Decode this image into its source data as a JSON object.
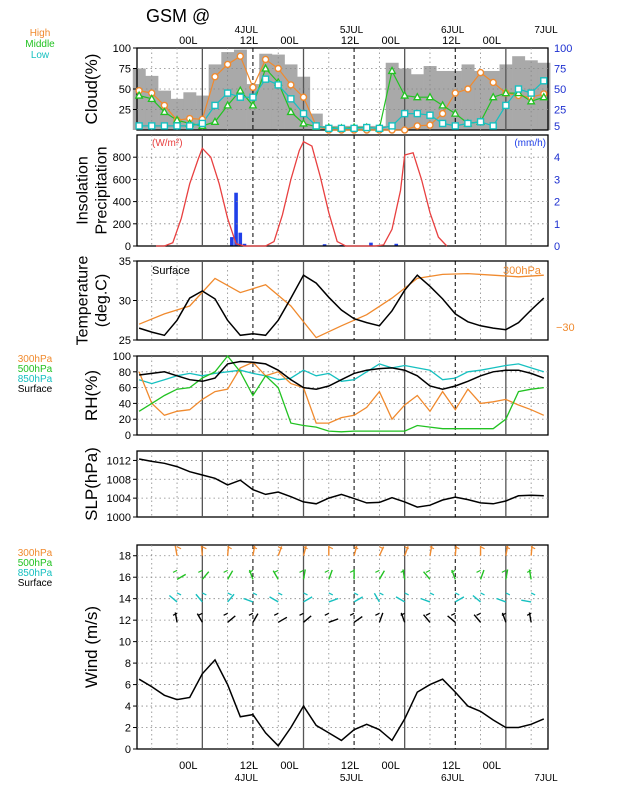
{
  "header": {
    "title": "GSM  @",
    "time_labels": [
      "00L",
      "12L",
      "00L",
      "12L",
      "00L",
      "12L",
      "00L"
    ],
    "date_labels": [
      "4JUL",
      "5JUL",
      "6JUL",
      "7JUL"
    ]
  },
  "chart_data": [
    {
      "id": "cloud",
      "type": "bar",
      "ylabel": "Cloud(%)",
      "ylim": [
        0,
        100
      ],
      "yticks": [
        25,
        50,
        75,
        100
      ],
      "right_ticks": [
        5,
        25,
        50,
        75,
        100
      ],
      "legend": [
        "High",
        "Middle",
        "Low"
      ],
      "x_hours": [
        -15,
        -12,
        -9,
        -6,
        -3,
        0,
        3,
        6,
        9,
        12,
        15,
        18,
        21,
        24,
        27,
        30,
        33,
        36,
        39,
        42,
        45,
        48,
        51,
        54,
        57,
        60,
        63,
        66,
        69,
        72,
        75,
        78,
        81
      ],
      "series": [
        {
          "name": "total",
          "values": [
            75,
            66,
            48,
            38,
            46,
            42,
            80,
            95,
            98,
            56,
            93,
            92,
            80,
            65,
            20,
            5,
            5,
            5,
            5,
            5,
            82,
            75,
            68,
            78,
            72,
            72,
            80,
            72,
            72,
            80,
            90,
            85,
            82
          ]
        },
        {
          "name": "High",
          "values": [
            48,
            45,
            30,
            12,
            14,
            13,
            65,
            80,
            90,
            52,
            86,
            75,
            55,
            40,
            5,
            0,
            0,
            0,
            0,
            0,
            0,
            0,
            5,
            6,
            20,
            45,
            50,
            70,
            58,
            45,
            42,
            40,
            44
          ]
        },
        {
          "name": "Middle",
          "values": [
            42,
            38,
            22,
            12,
            8,
            5,
            10,
            30,
            48,
            30,
            75,
            58,
            22,
            8,
            4,
            3,
            2,
            3,
            3,
            2,
            72,
            42,
            40,
            40,
            30,
            20,
            8,
            10,
            40,
            45,
            45,
            35,
            40
          ]
        },
        {
          "name": "Low",
          "values": [
            5,
            5,
            5,
            5,
            5,
            8,
            30,
            45,
            40,
            40,
            62,
            55,
            38,
            20,
            5,
            2,
            2,
            2,
            3,
            2,
            5,
            20,
            20,
            18,
            8,
            5,
            8,
            10,
            5,
            30,
            50,
            45,
            60
          ]
        }
      ]
    },
    {
      "id": "insolation",
      "type": "line",
      "ylabel": "Insolation Precipitation",
      "left_unit": "(W/m²)",
      "right_unit": "(mm/h)",
      "ylim": [
        0,
        1000
      ],
      "yticks": [
        0,
        200,
        400,
        600,
        800
      ],
      "right_ticks": [
        0,
        1,
        2,
        3,
        4
      ],
      "series": [
        {
          "name": "insolation",
          "x": [
            -11,
            -9,
            -7,
            -5,
            -3,
            -1,
            0,
            2,
            4,
            6,
            8,
            10,
            11,
            13,
            15,
            17,
            19,
            21,
            23,
            24,
            26,
            28,
            30,
            32,
            34,
            35,
            37,
            39,
            41,
            43,
            45,
            47,
            48,
            50,
            52,
            54,
            56,
            58
          ],
          "values": [
            0,
            0,
            30,
            250,
            560,
            780,
            880,
            800,
            560,
            250,
            20,
            0,
            0,
            0,
            0,
            40,
            280,
            600,
            860,
            940,
            900,
            620,
            300,
            40,
            0,
            0,
            0,
            0,
            0,
            10,
            150,
            500,
            820,
            840,
            600,
            300,
            80,
            0
          ]
        },
        {
          "name": "precipitation",
          "x": [
            7,
            8,
            9,
            10,
            29,
            33,
            40,
            42,
            46
          ],
          "values": [
            0.4,
            2.4,
            0.6,
            0.1,
            0.08,
            0.04,
            0.15,
            0.05,
            0.1
          ]
        }
      ]
    },
    {
      "id": "temperature",
      "type": "line",
      "ylabel": "Temperature (deg.C)",
      "annotation_left": "Surface",
      "annotation_right": "300hPa",
      "right_tick": "−30",
      "ylim": [
        25,
        35
      ],
      "yticks": [
        25,
        30,
        35
      ],
      "series": [
        {
          "name": "Surface",
          "x": [
            -15,
            -12,
            -9,
            -6,
            -3,
            0,
            3,
            6,
            9,
            12,
            15,
            18,
            21,
            24,
            27,
            30,
            33,
            36,
            39,
            42,
            45,
            48,
            51,
            54,
            57,
            60,
            63,
            66,
            69,
            72,
            75,
            78,
            81
          ],
          "values": [
            26.5,
            26,
            25.6,
            27.5,
            30.3,
            31.2,
            30.2,
            27.5,
            25.6,
            25.8,
            25.6,
            27.5,
            30.3,
            33.2,
            32.2,
            30.4,
            28.8,
            27.7,
            27.2,
            26.8,
            28.7,
            31.3,
            33.2,
            31.8,
            30.2,
            28.3,
            27.3,
            26.8,
            26.5,
            26.3,
            27.2,
            28.8,
            30.3
          ]
        },
        {
          "name": "300hPa",
          "x": [
            -15,
            -9,
            -3,
            3,
            9,
            15,
            21,
            27,
            33,
            39,
            45,
            51,
            57,
            63,
            69,
            75,
            81
          ],
          "values": [
            27,
            28.3,
            29.3,
            32.8,
            31,
            32,
            29.3,
            25.3,
            26.8,
            28.2,
            30.3,
            32.8,
            33.3,
            33.4,
            33.2,
            33,
            33.2
          ]
        }
      ]
    },
    {
      "id": "rh",
      "type": "line",
      "ylabel": "RH(%)",
      "legend": [
        "300hPa",
        "500hPa",
        "850hPa",
        "Surface"
      ],
      "ylim": [
        0,
        100
      ],
      "yticks": [
        0,
        20,
        40,
        60,
        80,
        100
      ],
      "series": [
        {
          "name": "300hPa",
          "x": [
            -15,
            -12,
            -9,
            -6,
            -3,
            0,
            3,
            6,
            9,
            12,
            15,
            18,
            21,
            24,
            27,
            30,
            33,
            36,
            39,
            42,
            45,
            48,
            51,
            54,
            57,
            60,
            63,
            66,
            69,
            72,
            75,
            78,
            81
          ],
          "values": [
            80,
            40,
            25,
            30,
            32,
            45,
            55,
            58,
            85,
            92,
            75,
            80,
            65,
            60,
            15,
            15,
            22,
            25,
            35,
            55,
            20,
            38,
            50,
            30,
            55,
            32,
            58,
            40,
            42,
            45,
            38,
            32,
            25
          ]
        },
        {
          "name": "500hPa",
          "x": [
            -15,
            -12,
            -9,
            -6,
            -3,
            0,
            3,
            6,
            9,
            12,
            15,
            18,
            21,
            24,
            27,
            30,
            33,
            36,
            39,
            42,
            45,
            48,
            51,
            54,
            57,
            60,
            63,
            66,
            69,
            72,
            75,
            78,
            81
          ],
          "values": [
            30,
            40,
            50,
            58,
            60,
            72,
            80,
            100,
            80,
            50,
            75,
            60,
            15,
            12,
            10,
            5,
            4,
            5,
            5,
            5,
            5,
            5,
            12,
            10,
            8,
            8,
            8,
            8,
            8,
            20,
            55,
            58,
            60
          ]
        },
        {
          "name": "850hPa",
          "x": [
            -15,
            -12,
            -9,
            -6,
            -3,
            0,
            3,
            6,
            9,
            12,
            15,
            18,
            21,
            24,
            27,
            30,
            33,
            36,
            39,
            42,
            45,
            48,
            51,
            54,
            57,
            60,
            63,
            66,
            69,
            72,
            75,
            78,
            81
          ],
          "values": [
            70,
            65,
            70,
            75,
            78,
            75,
            78,
            80,
            82,
            78,
            75,
            70,
            72,
            82,
            75,
            78,
            68,
            70,
            80,
            90,
            85,
            88,
            85,
            82,
            70,
            72,
            80,
            82,
            85,
            88,
            90,
            85,
            80
          ]
        },
        {
          "name": "Surface",
          "x": [
            -15,
            -12,
            -9,
            -6,
            -3,
            0,
            3,
            6,
            9,
            12,
            15,
            18,
            21,
            24,
            27,
            30,
            33,
            36,
            39,
            42,
            45,
            48,
            51,
            54,
            57,
            60,
            63,
            66,
            69,
            72,
            75,
            78,
            81
          ],
          "values": [
            76,
            78,
            80,
            75,
            70,
            68,
            72,
            90,
            93,
            92,
            90,
            82,
            70,
            60,
            58,
            62,
            70,
            78,
            82,
            84,
            85,
            82,
            75,
            62,
            58,
            62,
            68,
            75,
            80,
            82,
            82,
            78,
            72
          ]
        }
      ]
    },
    {
      "id": "slp",
      "type": "line",
      "ylabel": "SLP(hPa)",
      "ylim": [
        1000,
        1014
      ],
      "yticks": [
        1000,
        1004,
        1008,
        1012
      ],
      "series": [
        {
          "name": "SLP",
          "x": [
            -15,
            -12,
            -9,
            -6,
            -3,
            0,
            3,
            6,
            9,
            12,
            15,
            18,
            21,
            24,
            27,
            30,
            33,
            36,
            39,
            42,
            45,
            48,
            51,
            54,
            57,
            60,
            63,
            66,
            69,
            72,
            75,
            78,
            81
          ],
          "values": [
            1012.3,
            1011.8,
            1011.4,
            1010.7,
            1009.6,
            1008.9,
            1008.2,
            1006.8,
            1007.8,
            1005.8,
            1004.8,
            1005.3,
            1004.3,
            1003.2,
            1002.8,
            1004,
            1004.8,
            1003.9,
            1003,
            1003.1,
            1004.1,
            1003.2,
            1002.1,
            1002.5,
            1003.6,
            1004.2,
            1003.7,
            1003,
            1002.8,
            1003.4,
            1004.5,
            1004.6,
            1004.5
          ]
        }
      ]
    },
    {
      "id": "wind",
      "type": "line",
      "ylabel": "Wind (m/s)",
      "legend": [
        "300hPa",
        "500hPa",
        "850hPa",
        "Surface"
      ],
      "ylim": [
        0,
        19
      ],
      "yticks": [
        0,
        2,
        4,
        6,
        8,
        10,
        12,
        14,
        16,
        18
      ],
      "series": [
        {
          "name": "Surface",
          "x": [
            -15,
            -12,
            -9,
            -6,
            -3,
            0,
            3,
            6,
            9,
            12,
            15,
            18,
            21,
            24,
            27,
            30,
            33,
            36,
            39,
            42,
            45,
            48,
            51,
            54,
            57,
            60,
            63,
            66,
            69,
            72,
            75,
            78,
            81
          ],
          "values": [
            6.5,
            5.8,
            5,
            4.6,
            4.8,
            7,
            8.3,
            6,
            3,
            3.2,
            1.5,
            0.3,
            2,
            4,
            2.2,
            1.5,
            0.8,
            1.8,
            2.3,
            1.8,
            0.8,
            2.8,
            5.3,
            6,
            6.5,
            5.3,
            4,
            3.5,
            2.7,
            2,
            2,
            2.3,
            2.8
          ]
        }
      ]
    }
  ]
}
